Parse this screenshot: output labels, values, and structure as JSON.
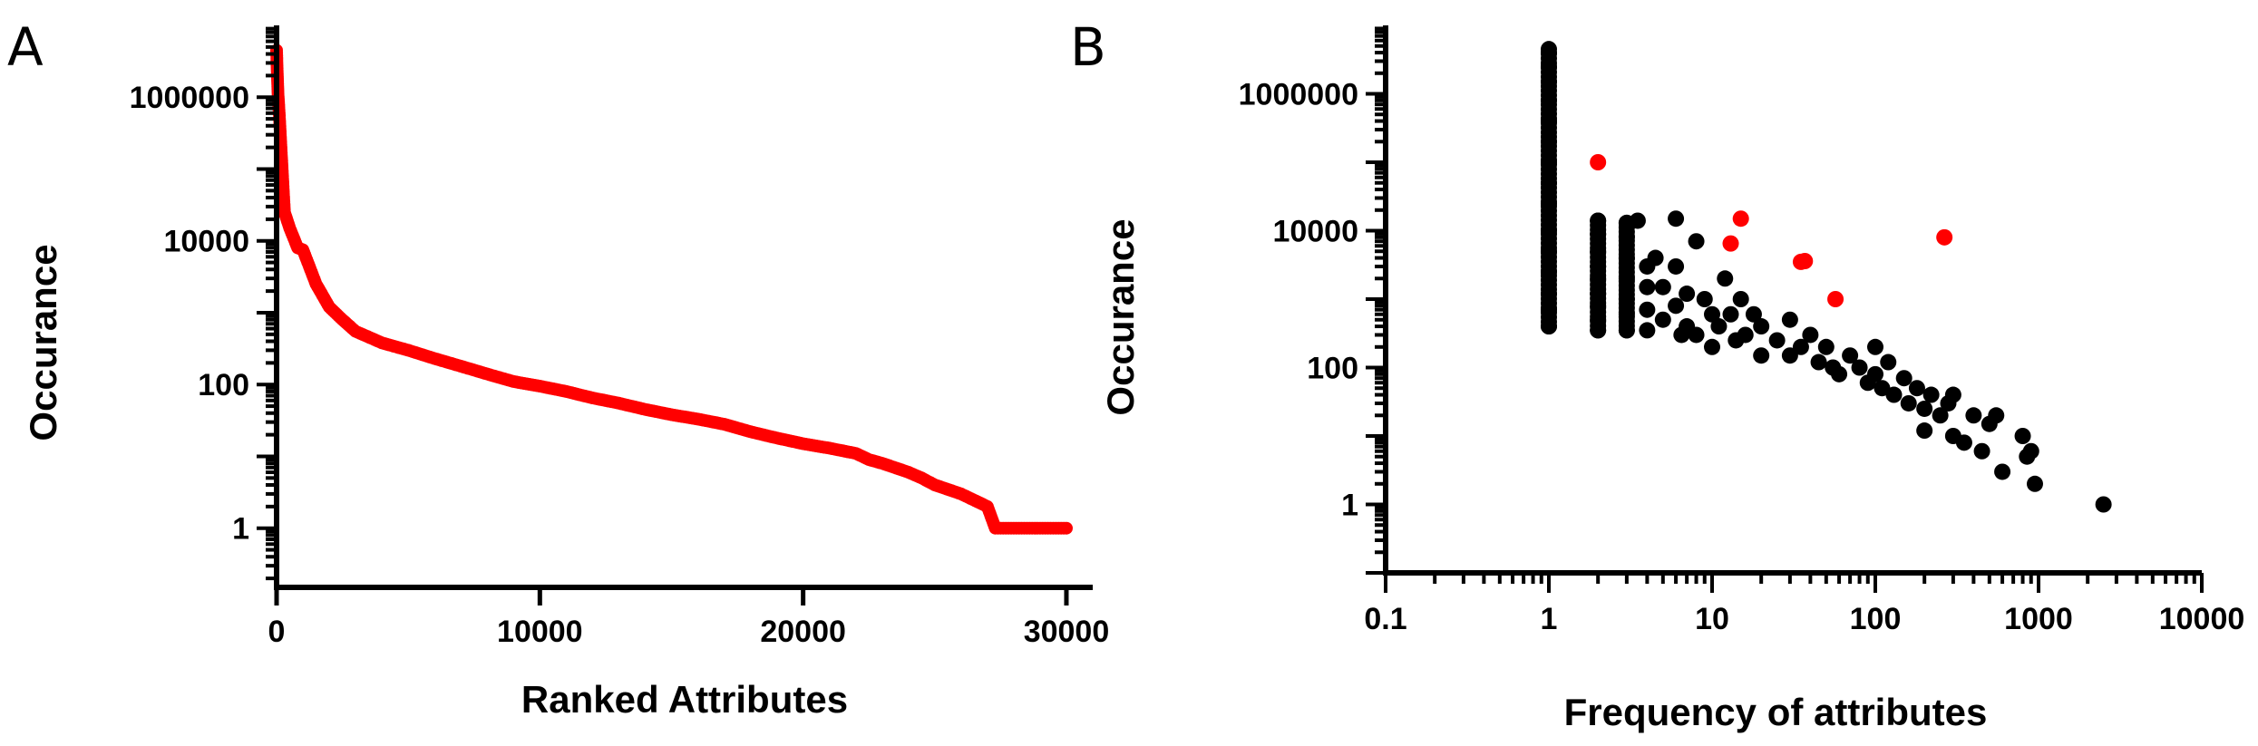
{
  "chart_data": [
    {
      "panel": "A",
      "type": "scatter",
      "xlabel": "Ranked Attributes",
      "ylabel": "Occurance",
      "xlim": [
        0,
        31000
      ],
      "ylim": [
        0.15,
        10000000
      ],
      "yscale": "log",
      "x_ticks": [
        0,
        10000,
        20000,
        30000
      ],
      "x_tick_labels": [
        "0",
        "10000",
        "20000",
        "30000"
      ],
      "y_ticks": [
        1,
        100,
        10000,
        1000000
      ],
      "y_tick_labels": [
        "1",
        "100",
        "10000",
        "1000000"
      ],
      "grid": false,
      "legend": "none",
      "series": [
        {
          "color": "#ff0000",
          "curve": [
            [
              1,
              4500000
            ],
            [
              20,
              2500000
            ],
            [
              50,
              1200000
            ],
            [
              100,
              600000
            ],
            [
              200,
              120000
            ],
            [
              300,
              25000
            ],
            [
              500,
              15000
            ],
            [
              800,
              8000
            ],
            [
              1000,
              7500
            ],
            [
              1500,
              2500
            ],
            [
              2000,
              1200
            ],
            [
              2500,
              800
            ],
            [
              3000,
              550
            ],
            [
              4000,
              380
            ],
            [
              5000,
              300
            ],
            [
              6000,
              230
            ],
            [
              7000,
              180
            ],
            [
              8000,
              140
            ],
            [
              9000,
              110
            ],
            [
              10000,
              95
            ],
            [
              11000,
              80
            ],
            [
              12000,
              65
            ],
            [
              13000,
              55
            ],
            [
              14000,
              45
            ],
            [
              15000,
              38
            ],
            [
              16000,
              33
            ],
            [
              17000,
              28
            ],
            [
              18000,
              22
            ],
            [
              19000,
              18
            ],
            [
              20000,
              15
            ],
            [
              21000,
              13
            ],
            [
              22000,
              11
            ],
            [
              22500,
              9
            ],
            [
              23000,
              8
            ],
            [
              24000,
              6
            ],
            [
              24500,
              5
            ],
            [
              25000,
              4
            ],
            [
              26000,
              3
            ],
            [
              27000,
              2
            ],
            [
              27300,
              1
            ],
            [
              30000,
              1
            ]
          ]
        }
      ]
    },
    {
      "panel": "B",
      "type": "scatter",
      "xlabel": "Frequency of attributes",
      "ylabel": "Occurance",
      "xscale": "log",
      "yscale": "log",
      "xlim": [
        0.1,
        10000
      ],
      "ylim": [
        0.1,
        10000000
      ],
      "x_ticks": [
        0.1,
        1,
        10,
        100,
        1000,
        10000
      ],
      "x_tick_labels": [
        "0.1",
        "1",
        "10",
        "100",
        "1000",
        "10000"
      ],
      "y_ticks": [
        1,
        100,
        10000,
        1000000
      ],
      "y_tick_labels": [
        "1",
        "100",
        "10000",
        "1000000"
      ],
      "grid": false,
      "legend": "none",
      "series": [
        {
          "color": "#000000",
          "points": [
            [
              1,
              4000000
            ],
            [
              1,
              2500000
            ],
            [
              1,
              1500000
            ],
            [
              1,
              800000
            ],
            [
              1,
              400000
            ],
            [
              1,
              200000
            ],
            [
              1,
              100000
            ],
            [
              1,
              50000
            ],
            [
              1,
              25000
            ],
            [
              1,
              10000
            ],
            [
              1,
              5000
            ],
            [
              1,
              2500
            ],
            [
              1,
              1200
            ],
            [
              1,
              700
            ],
            [
              1,
              400
            ],
            [
              2,
              14000
            ],
            [
              2,
              9000
            ],
            [
              2,
              5000
            ],
            [
              2,
              3000
            ],
            [
              2,
              2000
            ],
            [
              2,
              1200
            ],
            [
              2,
              800
            ],
            [
              2,
              500
            ],
            [
              2,
              350
            ],
            [
              3,
              13000
            ],
            [
              3,
              8000
            ],
            [
              3,
              4000
            ],
            [
              3,
              2000
            ],
            [
              3,
              1000
            ],
            [
              3,
              600
            ],
            [
              3,
              350
            ],
            [
              3.5,
              14000
            ],
            [
              4,
              3000
            ],
            [
              4,
              1500
            ],
            [
              4,
              700
            ],
            [
              4,
              350
            ],
            [
              4.5,
              4000
            ],
            [
              5,
              1500
            ],
            [
              5,
              500
            ],
            [
              6,
              15000
            ],
            [
              6,
              3000
            ],
            [
              6,
              800
            ],
            [
              6.5,
              300
            ],
            [
              7,
              1200
            ],
            [
              7,
              400
            ],
            [
              8,
              7000
            ],
            [
              8,
              300
            ],
            [
              9,
              1000
            ],
            [
              10,
              600
            ],
            [
              10,
              200
            ],
            [
              11,
              400
            ],
            [
              12,
              2000
            ],
            [
              13,
              600
            ],
            [
              14,
              250
            ],
            [
              15,
              1000
            ],
            [
              16,
              300
            ],
            [
              18,
              600
            ],
            [
              20,
              400
            ],
            [
              20,
              150
            ],
            [
              25,
              250
            ],
            [
              30,
              500
            ],
            [
              30,
              150
            ],
            [
              35,
              200
            ],
            [
              40,
              300
            ],
            [
              45,
              120
            ],
            [
              50,
              200
            ],
            [
              55,
              100
            ],
            [
              60,
              80
            ],
            [
              70,
              150
            ],
            [
              80,
              100
            ],
            [
              90,
              60
            ],
            [
              100,
              200
            ],
            [
              100,
              80
            ],
            [
              110,
              50
            ],
            [
              120,
              120
            ],
            [
              130,
              40
            ],
            [
              150,
              70
            ],
            [
              160,
              30
            ],
            [
              180,
              50
            ],
            [
              200,
              25
            ],
            [
              200,
              12
            ],
            [
              220,
              40
            ],
            [
              250,
              20
            ],
            [
              280,
              30
            ],
            [
              300,
              10
            ],
            [
              300,
              40
            ],
            [
              350,
              8
            ],
            [
              400,
              20
            ],
            [
              450,
              6
            ],
            [
              500,
              15
            ],
            [
              550,
              20
            ],
            [
              600,
              3
            ],
            [
              800,
              10
            ],
            [
              850,
              5
            ],
            [
              900,
              6
            ],
            [
              950,
              2
            ],
            [
              2500,
              1
            ]
          ]
        },
        {
          "color": "#ff0000",
          "points": [
            [
              2,
              100000
            ],
            [
              13,
              6500
            ],
            [
              15,
              15000
            ],
            [
              35,
              3500
            ],
            [
              37,
              3600
            ],
            [
              57,
              1000
            ],
            [
              265,
              8000
            ]
          ]
        }
      ]
    }
  ],
  "panels": {
    "a_letter": "A",
    "b_letter": "B"
  }
}
